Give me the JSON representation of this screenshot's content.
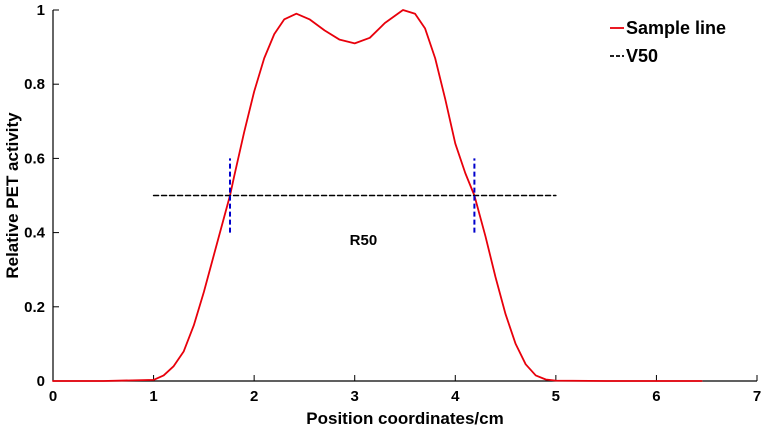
{
  "chart_data": {
    "type": "line",
    "title": "",
    "xlabel": "Position coordinates/cm",
    "ylabel": "Relative PET activity",
    "xlim": [
      0,
      7
    ],
    "ylim": [
      0,
      1
    ],
    "x_ticks": [
      0,
      1,
      2,
      3,
      4,
      5,
      6,
      7
    ],
    "x_tick_labels": [
      "0",
      "1",
      "2",
      "3",
      "4",
      "5",
      "6",
      "7"
    ],
    "y_ticks": [
      0,
      0.2,
      0.4,
      0.6,
      0.8,
      1
    ],
    "y_tick_labels": [
      "0",
      "0.2",
      "0.4",
      "0.6",
      "0.8",
      "1"
    ],
    "grid": false,
    "legend_position": "top-right",
    "series": [
      {
        "name": "Sample line",
        "style": "solid",
        "color": "#e8000b",
        "x": [
          0,
          0.5,
          1.0,
          1.1,
          1.2,
          1.3,
          1.4,
          1.5,
          1.6,
          1.7,
          1.76,
          1.8,
          1.9,
          2.0,
          2.1,
          2.2,
          2.3,
          2.42,
          2.55,
          2.7,
          2.85,
          3.0,
          3.15,
          3.3,
          3.48,
          3.6,
          3.7,
          3.8,
          3.9,
          4.0,
          4.1,
          4.19,
          4.3,
          4.4,
          4.5,
          4.6,
          4.7,
          4.8,
          4.9,
          5.0,
          5.5,
          6.0,
          6.45
        ],
        "y": [
          0,
          0,
          0.003,
          0.015,
          0.04,
          0.08,
          0.15,
          0.24,
          0.34,
          0.44,
          0.5,
          0.55,
          0.67,
          0.78,
          0.87,
          0.935,
          0.975,
          0.99,
          0.975,
          0.945,
          0.92,
          0.91,
          0.925,
          0.965,
          1.0,
          0.99,
          0.95,
          0.87,
          0.76,
          0.64,
          0.56,
          0.5,
          0.39,
          0.28,
          0.18,
          0.1,
          0.045,
          0.015,
          0.004,
          0.001,
          0,
          0,
          0
        ]
      },
      {
        "name": "V50",
        "style": "dashed",
        "color": "#000000",
        "x": [
          1.0,
          5.0
        ],
        "y": [
          0.5,
          0.5
        ]
      }
    ],
    "markers": [
      {
        "style": "dashed",
        "color": "#0000cc",
        "x": [
          1.76,
          1.76
        ],
        "y": [
          0.4,
          0.6
        ]
      },
      {
        "style": "dashed",
        "color": "#0000cc",
        "x": [
          4.19,
          4.19
        ],
        "y": [
          0.4,
          0.6
        ]
      }
    ],
    "annotations": [
      {
        "text": "R50",
        "x": 2.95,
        "y": 0.38
      }
    ]
  }
}
